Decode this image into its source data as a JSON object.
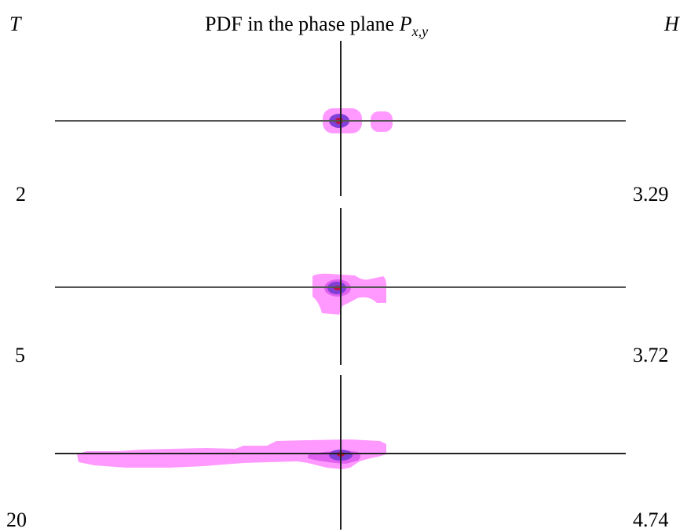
{
  "header": {
    "t_label": "T",
    "title_text": "PDF in the phase plane ",
    "title_symbol": "P",
    "title_subscript": "x,y",
    "h_label": "H"
  },
  "rows": [
    {
      "T": "2",
      "H": "3.29"
    },
    {
      "T": "5",
      "H": "3.72"
    },
    {
      "T": "20",
      "H": "4.74"
    }
  ],
  "colors": {
    "axis": "#555555",
    "low_density": "#ff99ff",
    "mid_density": "#e060f0",
    "high_density": "#8040d8",
    "peak": "#c01040"
  }
}
